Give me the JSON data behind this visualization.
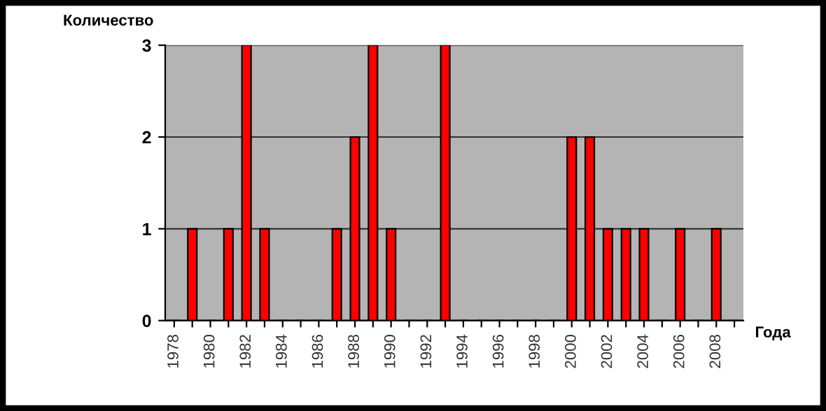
{
  "chart_data": {
    "type": "bar",
    "xlabel": "Года",
    "ylabel": "Количество",
    "categories": [
      "1978",
      null,
      "1980",
      null,
      "1982",
      null,
      "1984",
      null,
      "1986",
      null,
      "1988",
      null,
      "1990",
      null,
      "1992",
      null,
      "1994",
      null,
      "1996",
      null,
      "1998",
      null,
      "2000",
      null,
      "2002",
      null,
      "2004",
      null,
      "2006",
      null,
      "2008",
      null
    ],
    "values": [
      0,
      1,
      0,
      1,
      3,
      1,
      0,
      0,
      0,
      1,
      2,
      3,
      1,
      0,
      0,
      3,
      0,
      0,
      0,
      0,
      0,
      0,
      2,
      2,
      1,
      1,
      1,
      0,
      1,
      0,
      1,
      0
    ],
    "color": "#ff0000",
    "ylim": [
      0,
      3
    ],
    "yticks": [
      0,
      1,
      2,
      3
    ],
    "grid": "y",
    "legend": false
  }
}
